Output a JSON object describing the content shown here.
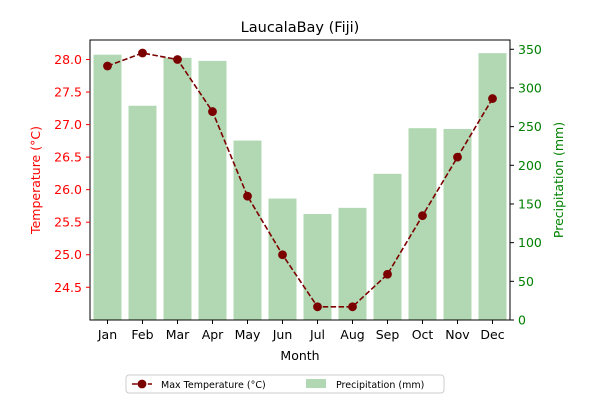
{
  "chart_data": {
    "type": "bar+line",
    "title": "LaucalaBay (Fiji)",
    "xlabel": "Month",
    "categories": [
      "Jan",
      "Feb",
      "Mar",
      "Apr",
      "May",
      "Jun",
      "Jul",
      "Aug",
      "Sep",
      "Oct",
      "Nov",
      "Dec"
    ],
    "series": [
      {
        "name": "Max Temperature (°C)",
        "type": "line",
        "axis": "left",
        "color": "#7b0000",
        "values": [
          27.9,
          28.1,
          28.0,
          27.2,
          25.9,
          25.0,
          24.2,
          24.2,
          24.7,
          25.6,
          26.5,
          27.4
        ]
      },
      {
        "name": "Precipitation (mm)",
        "type": "bar",
        "axis": "right",
        "color": "#b1d8b2",
        "values": [
          343,
          277,
          339,
          335,
          232,
          157,
          137,
          145,
          189,
          248,
          247,
          345
        ]
      }
    ],
    "y_left": {
      "label": "Temperature (°C)",
      "color": "#ff0000",
      "range": [
        23.997,
        28.3
      ],
      "ticks": [
        24.5,
        25.0,
        25.5,
        26.0,
        26.5,
        27.0,
        27.5,
        28.0
      ]
    },
    "y_right": {
      "label": "Precipitation (mm)",
      "color": "#008000",
      "range": [
        0,
        362
      ],
      "ticks": [
        0,
        50,
        100,
        150,
        200,
        250,
        300,
        350
      ]
    },
    "legend": {
      "placement": "bottom-center",
      "columns": 2
    },
    "grid": false
  }
}
